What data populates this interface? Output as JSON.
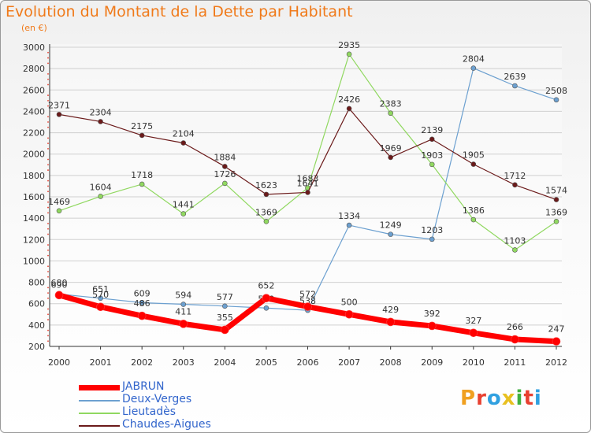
{
  "title": "Evolution du Montant de la Dette par Habitant",
  "subtitle": "(en €)",
  "logo": {
    "text": "Proxiti",
    "colors": [
      "#f0a020",
      "#e84030",
      "#30a0e0",
      "#e8c020",
      "#40b040",
      "#e84030",
      "#30a0e0"
    ]
  },
  "chart_data": {
    "type": "line",
    "x": [
      "2000",
      "2001",
      "2002",
      "2003",
      "2004",
      "2005",
      "2006",
      "2007",
      "2008",
      "2009",
      "2010",
      "2011",
      "2012"
    ],
    "yticks": [
      "200",
      "400",
      "600",
      "800",
      "1000",
      "1200",
      "1400",
      "1600",
      "1800",
      "2000",
      "2200",
      "2400",
      "2600",
      "2800",
      "3000"
    ],
    "ylim": [
      200,
      3000
    ],
    "grid": "horizontal",
    "legend_position": "bottom-left",
    "series": [
      {
        "name": "JABRUN",
        "color": "#ff0000",
        "width": 7,
        "values": [
          680,
          570,
          486,
          411,
          355,
          652,
          572,
          500,
          429,
          392,
          327,
          266,
          247
        ],
        "labels": [
          "680",
          "570",
          "486",
          "411",
          "355",
          "652",
          "572",
          "500",
          "429",
          "392",
          "327",
          "266",
          "247"
        ]
      },
      {
        "name": "Deux-Verges",
        "color": "#6ca0d0",
        "width": 1.2,
        "values": [
          690,
          651,
          609,
          594,
          577,
          559,
          538,
          1334,
          1249,
          1203,
          2804,
          2639,
          2508
        ],
        "labels": [
          "690",
          "651",
          "609",
          "594",
          "577",
          "559",
          "538",
          "1334",
          "1249",
          "1203",
          "2804",
          "2639",
          "2508"
        ]
      },
      {
        "name": "Lieutadès",
        "color": "#90d860",
        "width": 1.2,
        "values": [
          1469,
          1604,
          1718,
          1441,
          1726,
          1369,
          1683,
          2935,
          2383,
          1903,
          1386,
          1103,
          1369
        ],
        "labels": [
          "1469",
          "1604",
          "1718",
          "1441",
          "1726",
          "1369",
          "1683",
          "2935",
          "2383",
          "1903",
          "1386",
          "1103",
          "1369"
        ]
      },
      {
        "name": "Chaudes-Aigues",
        "color": "#6b1a1a",
        "width": 1.2,
        "values": [
          2371,
          2304,
          2175,
          2104,
          1884,
          1623,
          1641,
          2426,
          1969,
          2139,
          1905,
          1712,
          1574
        ],
        "labels": [
          "2371",
          "2304",
          "2175",
          "2104",
          "1884",
          "1623",
          "1641",
          "2426",
          "1969",
          "2139",
          "1905",
          "1712",
          "1574"
        ]
      }
    ]
  }
}
